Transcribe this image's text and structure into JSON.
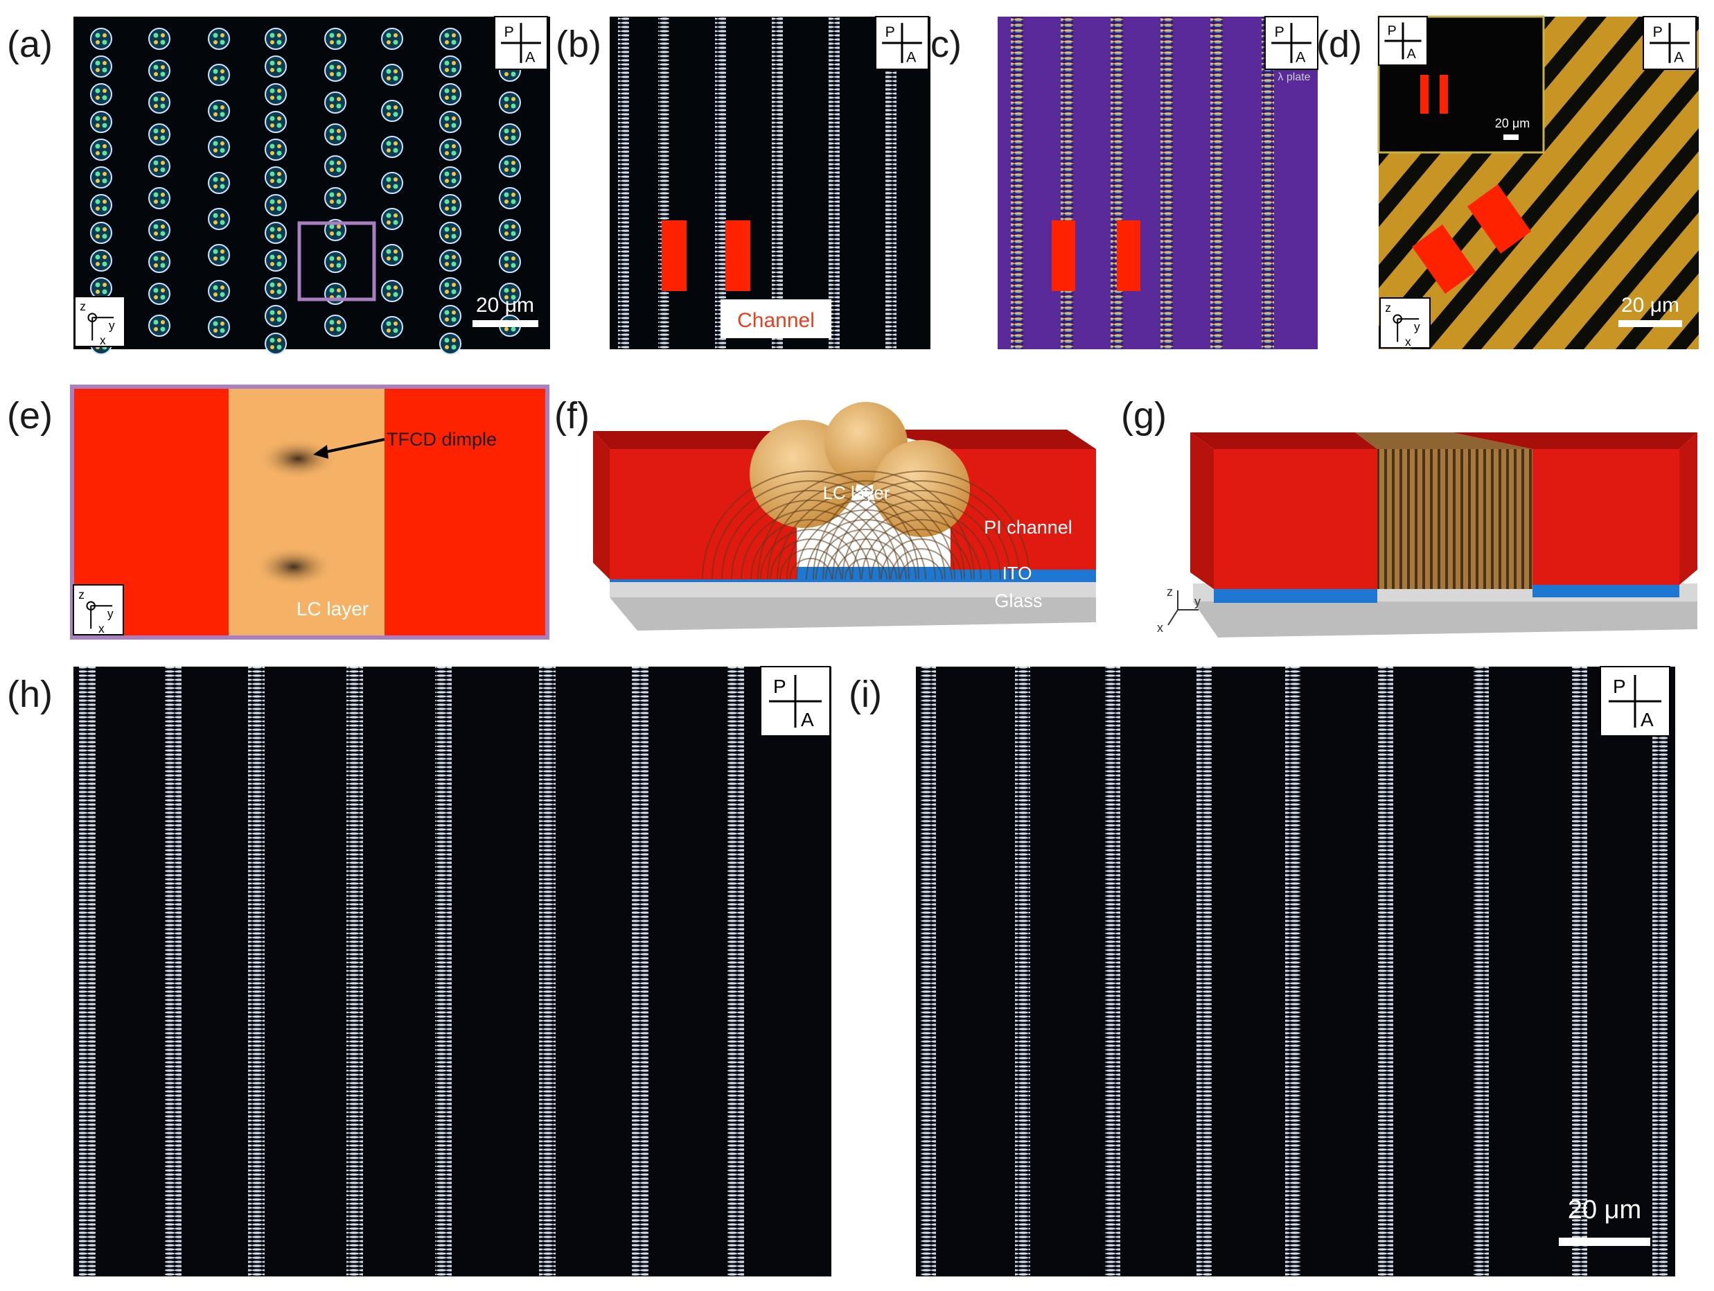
{
  "panel_labels": {
    "a": "(a)",
    "b": "(b)",
    "c": "(c)",
    "d": "(d)",
    "e": "(e)",
    "f": "(f)",
    "g": "(g)",
    "h": "(h)",
    "i": "(i)"
  },
  "polarizer": {
    "p": "P",
    "a": "A"
  },
  "waveplate_label": "λ plate",
  "axes": {
    "x": "x",
    "y": "y",
    "z": "z"
  },
  "scale_bar": {
    "a": "20 μm",
    "d": "20 μm",
    "d_inset": "20 μm",
    "i": "20 μm"
  },
  "panel_b": {
    "channel_label": "Channel"
  },
  "panel_e": {
    "dimple_label": "TFCD dimple",
    "layer_label": "LC layer"
  },
  "panel_f": {
    "lc_layer": "LC layer",
    "pi_channel": "PI channel",
    "ito": "ITO",
    "glass": "Glass"
  },
  "colors": {
    "channel_red": "#ff2200",
    "lc_orange": "#f5b266",
    "ito_blue": "#1e78d2",
    "glass_gray": "#bdbdbd",
    "roi_purple": "#a97fc2",
    "gold_stripe": "#c89524",
    "violet_bg": "#5a2a9a",
    "fringe_white": "#dfe9f5"
  },
  "icons": [
    "polarizer-cross-icon",
    "axis-triad-icon",
    "arrow-icon"
  ]
}
